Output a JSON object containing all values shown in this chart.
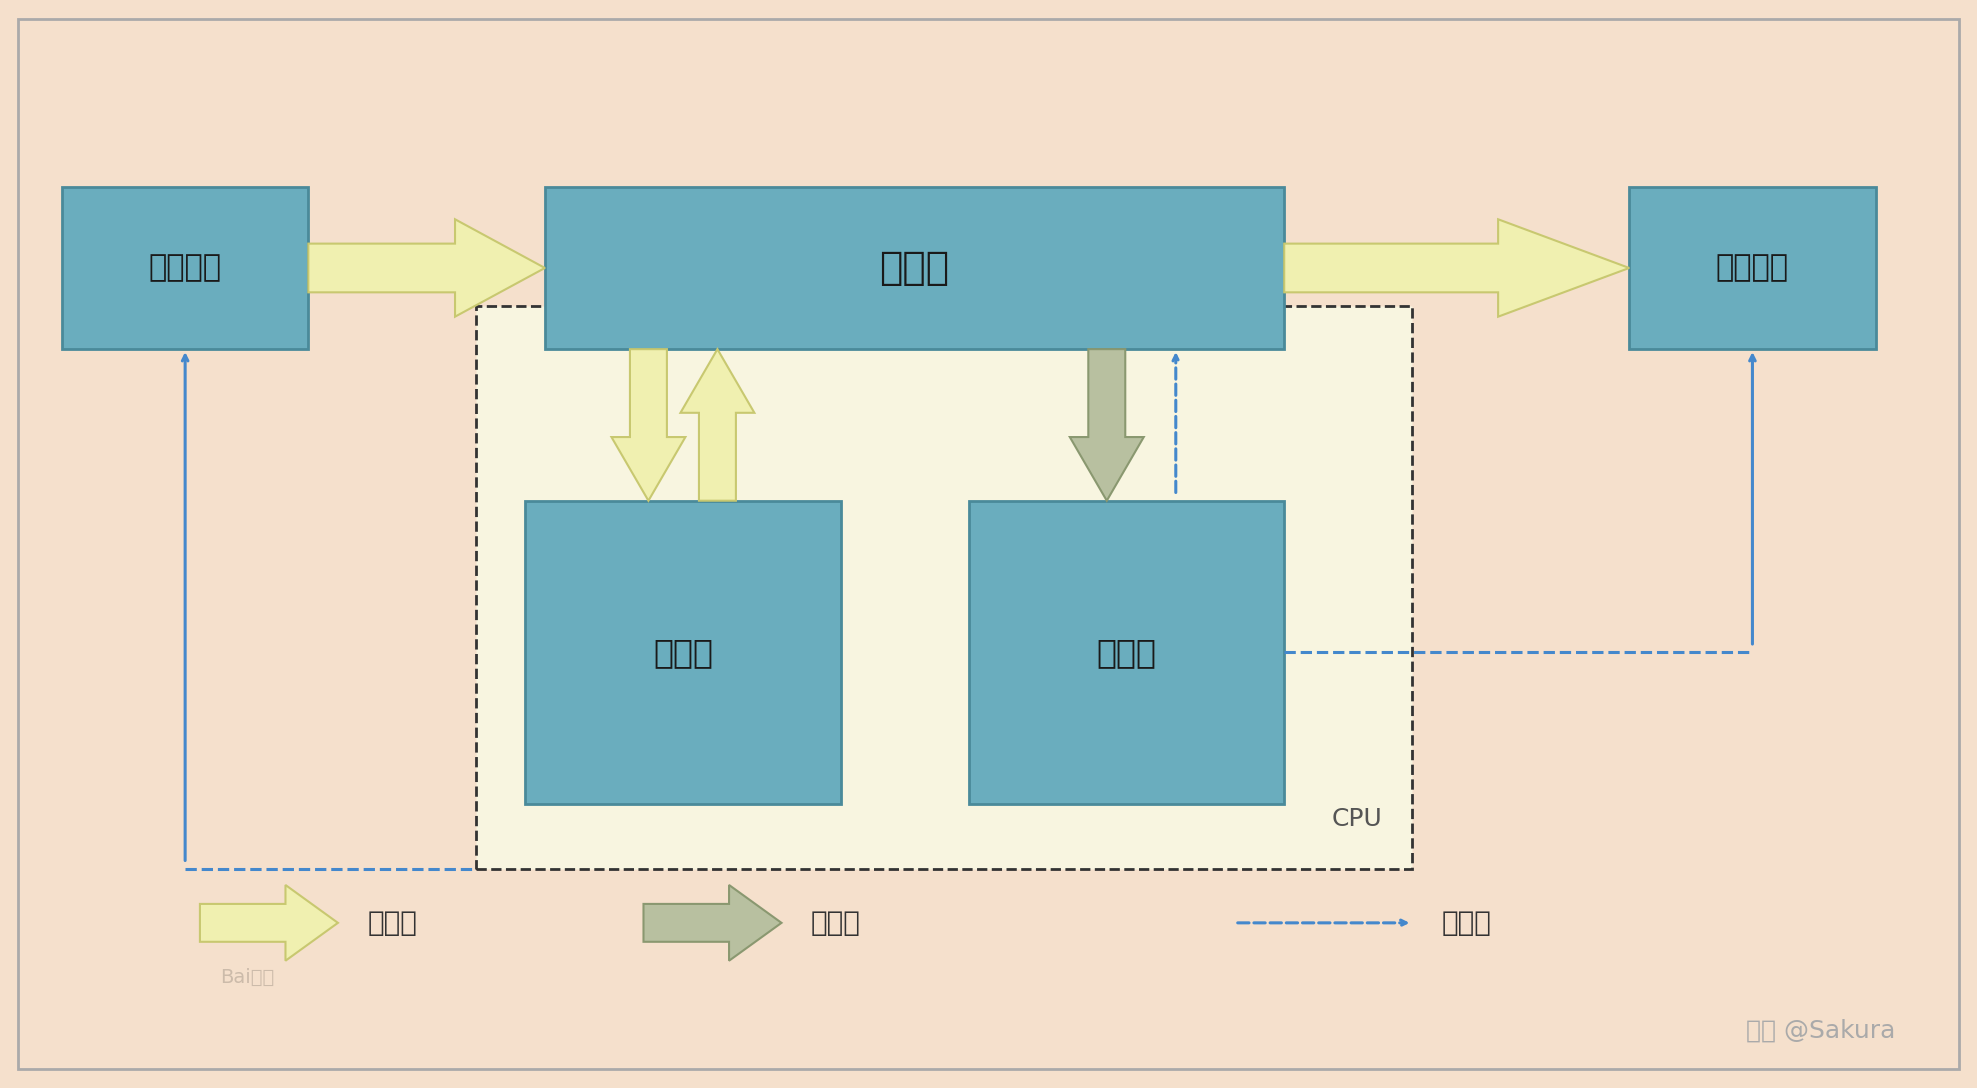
{
  "bg_color": "#f5e0cc",
  "outer_border_color": "#999999",
  "box_fill_teal": "#6aadbe",
  "box_stroke": "#4a8a9a",
  "cpu_box_fill": "#f8f5e0",
  "cpu_box_stroke": "#333333",
  "arrow_data_fill": "#f0f0b0",
  "arrow_data_stroke": "#c8c870",
  "arrow_instr_fill": "#b8c0a0",
  "arrow_instr_stroke": "#8a9870",
  "arrow_ctrl_color": "#4488cc",
  "text_box_color": "#222222",
  "cpu_label": "CPU",
  "memory_label": "存储器",
  "input_label": "输入设备",
  "output_label": "输出设备",
  "alu_label": "运算器",
  "ctrl_label": "控制器",
  "legend_data": "数据流",
  "legend_instr": "指令流",
  "legend_ctrl": "控制流",
  "watermark": "知乎 @Sakura",
  "baidu": "Bai百度"
}
